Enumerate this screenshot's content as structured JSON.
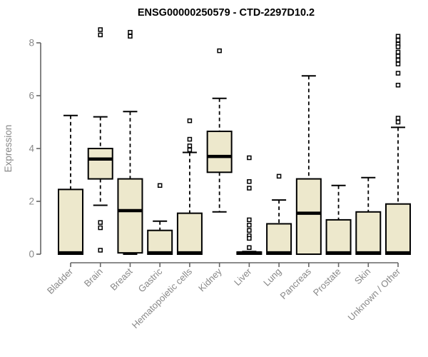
{
  "chart_data": {
    "type": "box",
    "title": "ENSG00000250579 - CTD-2297D10.2",
    "ylabel": "Expression",
    "xlabel": "",
    "yticks": [
      0,
      2,
      4,
      6,
      8
    ],
    "ylim": [
      0,
      8.6
    ],
    "grid": false,
    "legend": "none",
    "categories": [
      "Bladder",
      "Brain",
      "Breast",
      "Gastric",
      "Hematopoietic cells",
      "Kidney",
      "Liver",
      "Lung",
      "Pancreas",
      "Prostate",
      "Skin",
      "Unknown / Other"
    ],
    "series": [
      {
        "name": "Bladder",
        "whisker_low": 0,
        "q1": 0,
        "median": 0.05,
        "q3": 2.45,
        "whisker_high": 5.25,
        "outliers": []
      },
      {
        "name": "Brain",
        "whisker_low": 1.85,
        "q1": 2.85,
        "median": 3.6,
        "q3": 4.0,
        "whisker_high": 5.2,
        "outliers": [
          8.5,
          8.3,
          1.2,
          1.0,
          0.15
        ]
      },
      {
        "name": "Breast",
        "whisker_low": 0,
        "q1": 0.05,
        "median": 1.65,
        "q3": 2.85,
        "whisker_high": 5.4,
        "outliers": [
          8.4,
          8.25
        ]
      },
      {
        "name": "Gastric",
        "whisker_low": 0,
        "q1": 0,
        "median": 0.05,
        "q3": 0.9,
        "whisker_high": 1.25,
        "outliers": [
          2.6
        ]
      },
      {
        "name": "Hematopoietic cells",
        "whisker_low": 0,
        "q1": 0,
        "median": 0.05,
        "q3": 1.55,
        "whisker_high": 3.85,
        "outliers": [
          5.05,
          4.35,
          4.1,
          3.95
        ]
      },
      {
        "name": "Kidney",
        "whisker_low": 1.6,
        "q1": 3.1,
        "median": 3.7,
        "q3": 4.65,
        "whisker_high": 5.9,
        "outliers": [
          7.7
        ]
      },
      {
        "name": "Liver",
        "whisker_low": 0,
        "q1": 0,
        "median": 0.05,
        "q3": 0.08,
        "whisker_high": 0.1,
        "outliers": [
          3.65,
          2.75,
          2.5,
          1.3,
          1.1,
          0.9,
          0.7,
          0.6,
          0.25
        ]
      },
      {
        "name": "Lung",
        "whisker_low": 0,
        "q1": 0,
        "median": 0.05,
        "q3": 1.15,
        "whisker_high": 2.05,
        "outliers": [
          2.95
        ]
      },
      {
        "name": "Pancreas",
        "whisker_low": 0,
        "q1": 0,
        "median": 1.55,
        "q3": 2.85,
        "whisker_high": 6.75,
        "outliers": []
      },
      {
        "name": "Prostate",
        "whisker_low": 0,
        "q1": 0,
        "median": 0.05,
        "q3": 1.3,
        "whisker_high": 2.6,
        "outliers": []
      },
      {
        "name": "Skin",
        "whisker_low": 0,
        "q1": 0,
        "median": 0.05,
        "q3": 1.6,
        "whisker_high": 2.9,
        "outliers": []
      },
      {
        "name": "Unknown / Other",
        "whisker_low": 0,
        "q1": 0,
        "median": 0.05,
        "q3": 1.9,
        "whisker_high": 4.8,
        "outliers": [
          8.25,
          8.1,
          7.95,
          7.85,
          7.65,
          7.5,
          7.35,
          7.2,
          6.85,
          6.4,
          5.15,
          5.0
        ]
      }
    ],
    "colors": {
      "box_fill": "#EDE8CC",
      "box_border": "#000000",
      "median": "#000000",
      "whisker": "#000000",
      "outlier_stroke": "#000000",
      "outlier_fill": "#FFFFFF",
      "axis_line": "#666666",
      "axis_text": "#888888",
      "title_text": "#000000",
      "background": "#FFFFFF"
    }
  }
}
